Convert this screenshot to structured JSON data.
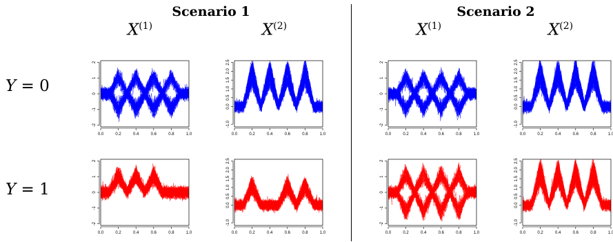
{
  "scenarios": [
    {
      "title": "Scenario 1"
    },
    {
      "title": "Scenario 2"
    }
  ],
  "column_labels": [
    {
      "base": "X",
      "sup": "(1)"
    },
    {
      "base": "X",
      "sup": "(2)"
    }
  ],
  "row_labels": [
    {
      "var": "Y",
      "rest": " = 0"
    },
    {
      "var": "Y",
      "rest": " = 1"
    }
  ],
  "colors": {
    "class0": "#0000ff",
    "class1": "#ff0000",
    "axis": "#000000"
  },
  "chart_data": [
    {
      "id": "s1-y0-x1",
      "type": "line",
      "scenario": "Scenario 1",
      "row": "Y = 0",
      "column": "X(1)",
      "series_color": "#0000ff",
      "xlim": [
        0,
        1
      ],
      "ylim": [
        -2.1,
        2.1
      ],
      "xticks": [
        "0.0",
        "0.2",
        "0.4",
        "0.6",
        "0.8",
        "1.0"
      ],
      "yticks": [
        "-2",
        "-1",
        "0",
        "1",
        "2"
      ],
      "ytick_values": [
        -2,
        -1,
        0,
        1,
        2
      ],
      "bumps": [
        0.2,
        0.4,
        0.6,
        0.8
      ],
      "height": 1.2,
      "mode": "pm",
      "noise": 0.3
    },
    {
      "id": "s1-y0-x2",
      "type": "line",
      "scenario": "Scenario 1",
      "row": "Y = 0",
      "column": "X(2)",
      "series_color": "#0000ff",
      "xlim": [
        0,
        1
      ],
      "ylim": [
        -1.15,
        2.6
      ],
      "xticks": [
        "0.0",
        "0.2",
        "0.4",
        "0.6",
        "0.8",
        "1.0"
      ],
      "yticks": [
        "-1.0",
        "0.0",
        "0.5",
        "1.0",
        "1.5",
        "2.0",
        "2.5"
      ],
      "ytick_values": [
        -1,
        0,
        0.5,
        1,
        1.5,
        2,
        2.5
      ],
      "bumps": [
        0.2,
        0.4,
        0.6,
        0.8
      ],
      "height": 2.2,
      "mode": "pos",
      "noise": 0.25
    },
    {
      "id": "s1-y1-x1",
      "type": "line",
      "scenario": "Scenario 1",
      "row": "Y = 1",
      "column": "X(1)",
      "series_color": "#ff0000",
      "xlim": [
        0,
        1
      ],
      "ylim": [
        -2.1,
        2.1
      ],
      "xticks": [
        "0.0",
        "0.2",
        "0.4",
        "0.6",
        "0.8",
        "1.0"
      ],
      "yticks": [
        "-2",
        "-1",
        "0",
        "1",
        "2"
      ],
      "ytick_values": [
        -2,
        -1,
        0,
        1,
        2
      ],
      "bumps": [
        0.2,
        0.4,
        0.6
      ],
      "height": 1.3,
      "mode": "pos",
      "noise": 0.3
    },
    {
      "id": "s1-y1-x2",
      "type": "line",
      "scenario": "Scenario 1",
      "row": "Y = 1",
      "column": "X(2)",
      "series_color": "#ff0000",
      "xlim": [
        0,
        1
      ],
      "ylim": [
        -1.15,
        2.6
      ],
      "xticks": [
        "0.0",
        "0.2",
        "0.4",
        "0.6",
        "0.8",
        "1.0"
      ],
      "yticks": [
        "-1.0",
        "0.0",
        "0.5",
        "1.0",
        "1.5",
        "2.0",
        "2.5"
      ],
      "ytick_values": [
        -1,
        0,
        0.5,
        1,
        1.5,
        2,
        2.5
      ],
      "bumps": [
        0.2,
        0.6,
        0.8
      ],
      "height": 1.3,
      "mode": "pos",
      "noise": 0.25
    },
    {
      "id": "s2-y0-x1",
      "type": "line",
      "scenario": "Scenario 2",
      "row": "Y = 0",
      "column": "X(1)",
      "series_color": "#0000ff",
      "xlim": [
        0,
        1
      ],
      "ylim": [
        -2.1,
        2.1
      ],
      "xticks": [
        "0.0",
        "0.2",
        "0.4",
        "0.6",
        "0.8",
        "1.0"
      ],
      "yticks": [
        "-2",
        "-1",
        "0",
        "1",
        "2"
      ],
      "ytick_values": [
        -2,
        -1,
        0,
        1,
        2
      ],
      "bumps": [
        0.2,
        0.4,
        0.6,
        0.8
      ],
      "height": 1.2,
      "mode": "pm",
      "noise": 0.3
    },
    {
      "id": "s2-y0-x2",
      "type": "line",
      "scenario": "Scenario 2",
      "row": "Y = 0",
      "column": "X(2)",
      "series_color": "#0000ff",
      "xlim": [
        0,
        1
      ],
      "ylim": [
        -1.15,
        2.6
      ],
      "xticks": [
        "0.0",
        "0.2",
        "0.4",
        "0.6",
        "0.8",
        "1.0"
      ],
      "yticks": [
        "-1.0",
        "0.0",
        "0.5",
        "1.0",
        "1.5",
        "2.0",
        "2.5"
      ],
      "ytick_values": [
        -1,
        0,
        0.5,
        1,
        1.5,
        2,
        2.5
      ],
      "bumps": [
        0.2,
        0.4,
        0.6,
        0.8
      ],
      "height": 2.2,
      "mode": "pos",
      "noise": 0.25
    },
    {
      "id": "s2-y1-x1",
      "type": "line",
      "scenario": "Scenario 2",
      "row": "Y = 1",
      "column": "X(1)",
      "series_color": "#ff0000",
      "xlim": [
        0,
        1
      ],
      "ylim": [
        -2.1,
        2.1
      ],
      "xticks": [
        "0.0",
        "0.2",
        "0.4",
        "0.6",
        "0.8",
        "1.0"
      ],
      "yticks": [
        "-2",
        "-1",
        "0",
        "1",
        "2"
      ],
      "ytick_values": [
        -2,
        -1,
        0,
        1,
        2
      ],
      "bumps": [
        0.2,
        0.4,
        0.6,
        0.8
      ],
      "height": 1.4,
      "mode": "pm",
      "noise": 0.3
    },
    {
      "id": "s2-y1-x2",
      "type": "line",
      "scenario": "Scenario 2",
      "row": "Y = 1",
      "column": "X(2)",
      "series_color": "#ff0000",
      "xlim": [
        0,
        1
      ],
      "ylim": [
        -1.15,
        2.6
      ],
      "xticks": [
        "0.0",
        "0.2",
        "0.4",
        "0.6",
        "0.8",
        "1.0"
      ],
      "yticks": [
        "-1.0",
        "0.0",
        "0.5",
        "1.0",
        "1.5",
        "2.0",
        "2.5"
      ],
      "ytick_values": [
        -1,
        0,
        0.5,
        1,
        1.5,
        2,
        2.5
      ],
      "bumps": [
        0.2,
        0.4,
        0.6,
        0.8
      ],
      "height": 2.2,
      "mode": "pos",
      "noise": 0.25
    }
  ]
}
